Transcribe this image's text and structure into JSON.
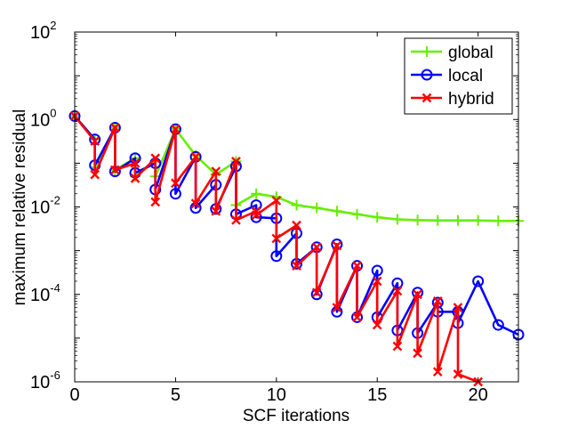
{
  "chart_data": {
    "type": "line",
    "title": "",
    "xlabel": "SCF iterations",
    "ylabel": "maximum relative residual",
    "xlim": [
      0,
      22
    ],
    "ylim_log10": [
      -6,
      2
    ],
    "yscale": "log",
    "grid": false,
    "legend_position": "top-right",
    "x_ticks": [
      0,
      5,
      10,
      15,
      20
    ],
    "y_tick_exponents": [
      -6,
      -4,
      -2,
      0,
      2
    ],
    "y_tick_base": "10",
    "series": [
      {
        "name": "global",
        "color": "#66ee00",
        "marker": "plus",
        "x": [
          0,
          1,
          1,
          2,
          2,
          3,
          3,
          4,
          4,
          5,
          5,
          6,
          6,
          7,
          7,
          8,
          8,
          9,
          10,
          11,
          12,
          13,
          14,
          15,
          16,
          17,
          18,
          19,
          20,
          21,
          22
        ],
        "y": [
          1.2,
          0.35,
          0.08,
          0.65,
          0.07,
          0.13,
          0.05,
          0.11,
          0.05,
          0.6,
          0.6,
          0.15,
          0.15,
          0.055,
          0.055,
          0.11,
          0.011,
          0.02,
          0.017,
          0.011,
          0.0095,
          0.008,
          0.0068,
          0.0058,
          0.0052,
          0.005,
          0.0049,
          0.0049,
          0.0049,
          0.0048,
          0.0048
        ]
      },
      {
        "name": "local",
        "color": "#0000ff",
        "marker": "circle",
        "x": [
          0,
          1,
          1,
          2,
          2,
          3,
          3,
          4,
          4,
          5,
          5,
          6,
          6,
          7,
          7,
          8,
          8,
          9,
          9,
          10,
          10,
          11,
          11,
          12,
          12,
          13,
          13,
          14,
          14,
          15,
          15,
          16,
          16,
          17,
          17,
          18,
          18,
          19,
          19,
          20,
          21,
          22
        ],
        "y": [
          1.2,
          0.35,
          0.09,
          0.65,
          0.065,
          0.13,
          0.06,
          0.1,
          0.025,
          0.6,
          0.02,
          0.14,
          0.0095,
          0.032,
          0.009,
          0.085,
          0.0068,
          0.011,
          0.0058,
          0.0055,
          0.00075,
          0.0025,
          0.0005,
          0.0012,
          0.0001,
          0.0014,
          4e-05,
          0.00045,
          3e-05,
          0.00035,
          3e-05,
          0.00018,
          1.5e-05,
          0.00011,
          1.3e-05,
          6.5e-05,
          4e-05,
          4e-05,
          2.2e-05,
          0.0002,
          2e-05,
          1.2e-05
        ]
      },
      {
        "name": "hybrid",
        "color": "#ff0000",
        "marker": "x",
        "x": [
          0,
          1,
          1,
          2,
          2,
          3,
          3,
          4,
          4,
          5,
          5,
          6,
          6,
          7,
          7,
          8,
          8,
          9,
          9,
          10,
          10,
          11,
          11,
          12,
          12,
          13,
          13,
          14,
          14,
          15,
          15,
          16,
          16,
          17,
          17,
          18,
          18,
          19,
          19,
          20
        ],
        "y": [
          1.2,
          0.32,
          0.055,
          0.65,
          0.07,
          0.1,
          0.045,
          0.13,
          0.013,
          0.6,
          0.035,
          0.14,
          0.012,
          0.065,
          0.008,
          0.11,
          0.005,
          0.008,
          0.0065,
          0.014,
          0.0019,
          0.0038,
          0.00045,
          0.0012,
          0.00011,
          0.0013,
          5e-05,
          0.00045,
          3e-05,
          0.0002,
          2e-05,
          0.00012,
          6.5e-06,
          0.0001,
          4.5e-06,
          7e-05,
          1.7e-06,
          5e-05,
          1.5e-06,
          1e-06
        ]
      }
    ]
  }
}
